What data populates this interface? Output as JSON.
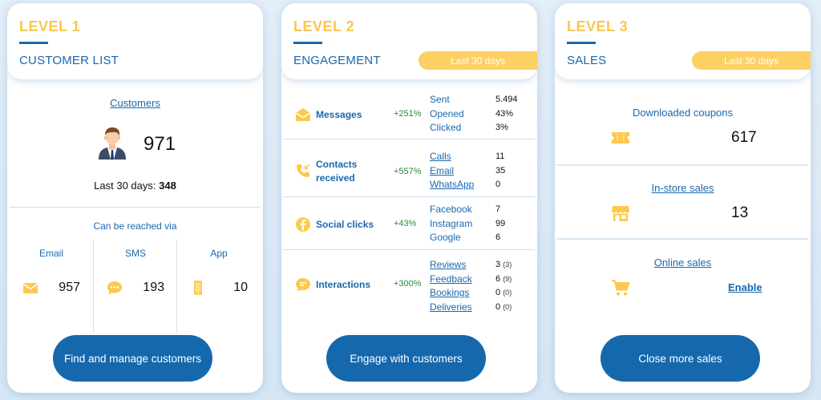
{
  "colors": {
    "accent_yellow": "#f9c74f",
    "primary_blue": "#1668ad",
    "growth_green": "#2a8b3b"
  },
  "card1": {
    "level": "LEVEL 1",
    "title": "CUSTOMER LIST",
    "customers_link": "Customers",
    "count": "971",
    "last_label": "Last 30 days:",
    "last_value": "348",
    "reach_label": "Can be reached via",
    "channels": [
      {
        "name": "Email",
        "icon": "envelope-icon",
        "value": "957"
      },
      {
        "name": "SMS",
        "icon": "chat-bubble-icon",
        "value": "193"
      },
      {
        "name": "App",
        "icon": "smartphone-icon",
        "value": "10"
      }
    ],
    "cta": "Find and manage customers"
  },
  "card2": {
    "level": "LEVEL 2",
    "title": "ENGAGEMENT",
    "period": "Last 30 days",
    "rows": [
      {
        "label": "Messages",
        "pct": "+251%",
        "items": [
          "Sent",
          "Opened",
          "Clicked"
        ],
        "values": [
          "5.494",
          "43%",
          "3%"
        ]
      },
      {
        "label_line1": "Contacts",
        "label_line2": "received",
        "pct": "+557%",
        "items": [
          "Calls",
          "Email",
          "WhatsApp"
        ],
        "values": [
          "11",
          "35",
          "0"
        ]
      },
      {
        "label": "Social clicks",
        "pct": "+43%",
        "items": [
          "Facebook",
          "Instagram",
          "Google"
        ],
        "values": [
          "7",
          "99",
          "6"
        ]
      },
      {
        "label": "Interactions",
        "pct": "+300%",
        "items": [
          "Reviews",
          "Feedback",
          "Bookings",
          "Deliveries"
        ],
        "values": [
          "3",
          "6",
          "0",
          "0"
        ],
        "sub_values": [
          "(3)",
          "(9)",
          "(0)",
          "(0)"
        ]
      }
    ],
    "cta": "Engage with customers"
  },
  "card3": {
    "level": "LEVEL 3",
    "title": "SALES",
    "period": "Last 30 days",
    "blocks": [
      {
        "title": "Downloaded coupons",
        "icon": "ticket-icon",
        "value": "617"
      },
      {
        "title": "In-store sales",
        "icon": "store-icon",
        "value": "13"
      },
      {
        "title": "Online sales",
        "icon": "cart-icon",
        "value": "Enable"
      }
    ],
    "cta": "Close more sales"
  }
}
